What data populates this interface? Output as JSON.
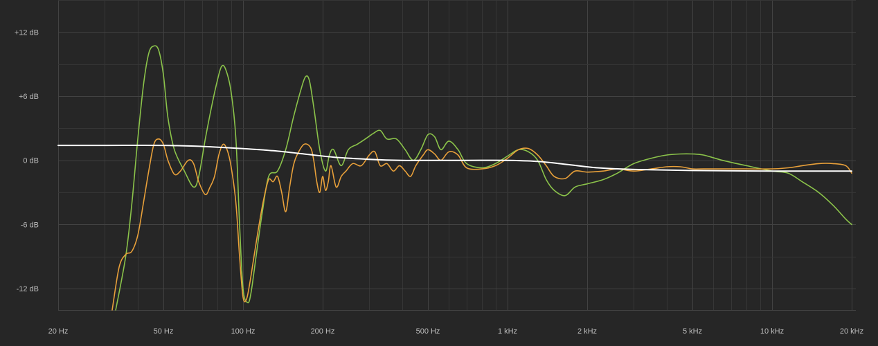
{
  "chart_data": {
    "type": "line",
    "x_scale": "log",
    "xlim": [
      20,
      20000
    ],
    "ylim": [
      -14,
      15
    ],
    "grid": true,
    "background_color": "#262626",
    "x_ticks": [
      {
        "value": 20,
        "label": "20 Hz"
      },
      {
        "value": 50,
        "label": "50 Hz"
      },
      {
        "value": 100,
        "label": "100 Hz"
      },
      {
        "value": 200,
        "label": "200 Hz"
      },
      {
        "value": 500,
        "label": "500 Hz"
      },
      {
        "value": 1000,
        "label": "1 kHz"
      },
      {
        "value": 2000,
        "label": "2 kHz"
      },
      {
        "value": 5000,
        "label": "5 kHz"
      },
      {
        "value": 10000,
        "label": "10 kHz"
      },
      {
        "value": 20000,
        "label": "20 kHz"
      }
    ],
    "y_ticks": [
      {
        "value": 12,
        "label": "+12 dB"
      },
      {
        "value": 6,
        "label": "+6 dB"
      },
      {
        "value": 0,
        "label": "0 dB"
      },
      {
        "value": -6,
        "label": "-6 dB"
      },
      {
        "value": -12,
        "label": "-12 dB"
      }
    ],
    "series": [
      {
        "color": "#8bc34a",
        "points": [
          [
            33,
            -14
          ],
          [
            36,
            -9
          ],
          [
            38,
            -4
          ],
          [
            40,
            2
          ],
          [
            42,
            7
          ],
          [
            44,
            10
          ],
          [
            46,
            10.7
          ],
          [
            48,
            10.3
          ],
          [
            50,
            8
          ],
          [
            52,
            4
          ],
          [
            55,
            1
          ],
          [
            60,
            -1
          ],
          [
            65,
            -2.5
          ],
          [
            68,
            -1.5
          ],
          [
            72,
            2
          ],
          [
            76,
            5
          ],
          [
            80,
            7.5
          ],
          [
            83,
            8.8
          ],
          [
            86,
            8.5
          ],
          [
            90,
            6.5
          ],
          [
            94,
            2
          ],
          [
            97,
            -6
          ],
          [
            100,
            -12
          ],
          [
            104,
            -13.3
          ],
          [
            107,
            -12.5
          ],
          [
            112,
            -9
          ],
          [
            118,
            -5
          ],
          [
            125,
            -1.5
          ],
          [
            135,
            -1
          ],
          [
            145,
            1
          ],
          [
            155,
            4
          ],
          [
            165,
            6.5
          ],
          [
            172,
            7.8
          ],
          [
            178,
            7.5
          ],
          [
            185,
            5
          ],
          [
            195,
            1
          ],
          [
            205,
            -1
          ],
          [
            212,
            0.5
          ],
          [
            220,
            1
          ],
          [
            235,
            -0.5
          ],
          [
            250,
            1
          ],
          [
            270,
            1.5
          ],
          [
            290,
            2
          ],
          [
            310,
            2.5
          ],
          [
            330,
            2.8
          ],
          [
            350,
            2
          ],
          [
            380,
            2
          ],
          [
            410,
            1
          ],
          [
            440,
            0
          ],
          [
            470,
            1
          ],
          [
            500,
            2.4
          ],
          [
            530,
            2.2
          ],
          [
            560,
            1
          ],
          [
            600,
            1.8
          ],
          [
            650,
            1
          ],
          [
            700,
            -0.3
          ],
          [
            800,
            -0.7
          ],
          [
            900,
            -0.3
          ],
          [
            1000,
            0.4
          ],
          [
            1100,
            1
          ],
          [
            1200,
            0.8
          ],
          [
            1300,
            0
          ],
          [
            1400,
            -1.8
          ],
          [
            1500,
            -2.8
          ],
          [
            1650,
            -3.3
          ],
          [
            1800,
            -2.5
          ],
          [
            2000,
            -2.2
          ],
          [
            2300,
            -1.8
          ],
          [
            2600,
            -1.2
          ],
          [
            3000,
            -0.3
          ],
          [
            3500,
            0.2
          ],
          [
            4000,
            0.5
          ],
          [
            4500,
            0.6
          ],
          [
            5000,
            0.6
          ],
          [
            5500,
            0.5
          ],
          [
            6500,
            0
          ],
          [
            8000,
            -0.5
          ],
          [
            10000,
            -1
          ],
          [
            11500,
            -1.2
          ],
          [
            13000,
            -2
          ],
          [
            15000,
            -3
          ],
          [
            17000,
            -4.2
          ],
          [
            19000,
            -5.5
          ],
          [
            20000,
            -6
          ]
        ]
      },
      {
        "color": "#e8a03a",
        "points": [
          [
            32,
            -14
          ],
          [
            34,
            -10
          ],
          [
            36,
            -8.8
          ],
          [
            38,
            -8.5
          ],
          [
            40,
            -7
          ],
          [
            42,
            -4
          ],
          [
            44,
            -1
          ],
          [
            46,
            1.5
          ],
          [
            48,
            2
          ],
          [
            50,
            1.5
          ],
          [
            52,
            0
          ],
          [
            55,
            -1.3
          ],
          [
            58,
            -1
          ],
          [
            62,
            0
          ],
          [
            65,
            -0.3
          ],
          [
            68,
            -2
          ],
          [
            72,
            -3.2
          ],
          [
            75,
            -2.5
          ],
          [
            78,
            -1.5
          ],
          [
            81,
            0.5
          ],
          [
            84,
            1.5
          ],
          [
            87,
            1
          ],
          [
            90,
            -0.5
          ],
          [
            94,
            -4
          ],
          [
            97,
            -9
          ],
          [
            100,
            -12.8
          ],
          [
            103,
            -13
          ],
          [
            106,
            -11.5
          ],
          [
            110,
            -9
          ],
          [
            115,
            -6
          ],
          [
            120,
            -3.5
          ],
          [
            125,
            -1.8
          ],
          [
            130,
            -2
          ],
          [
            135,
            -1.5
          ],
          [
            140,
            -3
          ],
          [
            145,
            -4.8
          ],
          [
            150,
            -2.5
          ],
          [
            155,
            -0.5
          ],
          [
            160,
            0.5
          ],
          [
            170,
            1.5
          ],
          [
            180,
            1.2
          ],
          [
            185,
            0
          ],
          [
            190,
            -2
          ],
          [
            195,
            -3
          ],
          [
            200,
            -1.5
          ],
          [
            205,
            -2.8
          ],
          [
            210,
            -2
          ],
          [
            215,
            -0.5
          ],
          [
            225,
            -2.5
          ],
          [
            235,
            -1.5
          ],
          [
            245,
            -1
          ],
          [
            260,
            -0.3
          ],
          [
            280,
            -0.5
          ],
          [
            300,
            0.5
          ],
          [
            315,
            0.8
          ],
          [
            330,
            -0.5
          ],
          [
            350,
            -0.3
          ],
          [
            370,
            -1
          ],
          [
            390,
            -0.5
          ],
          [
            410,
            -1
          ],
          [
            430,
            -1.5
          ],
          [
            450,
            -0.5
          ],
          [
            480,
            0.5
          ],
          [
            500,
            1
          ],
          [
            530,
            0.6
          ],
          [
            560,
            0
          ],
          [
            600,
            0.8
          ],
          [
            650,
            0.5
          ],
          [
            700,
            -0.7
          ],
          [
            800,
            -0.8
          ],
          [
            900,
            -0.5
          ],
          [
            1000,
            0.2
          ],
          [
            1100,
            1
          ],
          [
            1200,
            1.1
          ],
          [
            1300,
            0.5
          ],
          [
            1400,
            -0.5
          ],
          [
            1500,
            -1.5
          ],
          [
            1650,
            -1.7
          ],
          [
            1800,
            -1
          ],
          [
            2000,
            -1.1
          ],
          [
            2300,
            -1
          ],
          [
            2600,
            -0.8
          ],
          [
            3000,
            -1
          ],
          [
            3500,
            -0.8
          ],
          [
            4000,
            -0.6
          ],
          [
            4500,
            -0.6
          ],
          [
            5000,
            -0.8
          ],
          [
            5500,
            -0.8
          ],
          [
            6500,
            -0.8
          ],
          [
            8000,
            -0.8
          ],
          [
            10000,
            -0.8
          ],
          [
            11500,
            -0.7
          ],
          [
            13000,
            -0.5
          ],
          [
            15000,
            -0.3
          ],
          [
            17000,
            -0.3
          ],
          [
            19000,
            -0.5
          ],
          [
            20000,
            -1.2
          ]
        ]
      },
      {
        "color": "#ffffff",
        "points": [
          [
            20,
            1.4
          ],
          [
            30,
            1.4
          ],
          [
            50,
            1.4
          ],
          [
            70,
            1.3
          ],
          [
            100,
            1.1
          ],
          [
            130,
            0.9
          ],
          [
            170,
            0.6
          ],
          [
            220,
            0.3
          ],
          [
            300,
            0.1
          ],
          [
            400,
            0
          ],
          [
            500,
            0
          ],
          [
            700,
            0
          ],
          [
            1000,
            0
          ],
          [
            1300,
            -0.1
          ],
          [
            1700,
            -0.4
          ],
          [
            2200,
            -0.7
          ],
          [
            3000,
            -0.85
          ],
          [
            5000,
            -0.95
          ],
          [
            10000,
            -1
          ],
          [
            20000,
            -1
          ]
        ]
      }
    ]
  }
}
